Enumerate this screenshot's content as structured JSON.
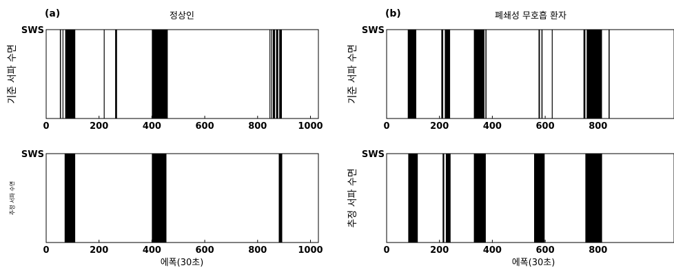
{
  "chart_data": [
    {
      "type": "bar",
      "panel_label": "(a)",
      "title": "정상인",
      "ylabel": "기준 서파 수면",
      "ytick_label": "SWS",
      "xlabel": "",
      "xlim": [
        0,
        1030
      ],
      "xticks": [
        "0",
        "200",
        "400",
        "600",
        "800",
        "1000"
      ],
      "events": [
        [
          52,
          56
        ],
        [
          62,
          63
        ],
        [
          72,
          110
        ],
        [
          218,
          221
        ],
        [
          261,
          268
        ],
        [
          400,
          460
        ],
        [
          845,
          848
        ],
        [
          852,
          855
        ],
        [
          858,
          866
        ],
        [
          870,
          878
        ],
        [
          882,
          892
        ]
      ]
    },
    {
      "type": "bar",
      "panel_label": "(b)",
      "title": "폐쇄성 무호흡 환자",
      "ylabel": "기준 서파 수면",
      "ytick_label": "SWS",
      "xlabel": "",
      "xlim": [
        0,
        930
      ],
      "xticks": [
        "0",
        "200",
        "400",
        "600",
        "800"
      ],
      "events": [
        [
          80,
          112
        ],
        [
          207,
          214
        ],
        [
          220,
          240
        ],
        [
          330,
          370
        ],
        [
          374,
          378
        ],
        [
          575,
          580
        ],
        [
          586,
          590
        ],
        [
          625,
          628
        ],
        [
          745,
          752
        ],
        [
          757,
          815
        ],
        [
          840,
          844
        ]
      ]
    },
    {
      "type": "bar",
      "panel_label": "",
      "title": "",
      "ylabel": "추정 서파 수면",
      "ytick_label": "SWS",
      "xlabel": "에폭(30초)",
      "xlim": [
        0,
        1030
      ],
      "xticks": [
        "0",
        "200",
        "400",
        "600",
        "800",
        "1000"
      ],
      "events": [
        [
          70,
          110
        ],
        [
          400,
          455
        ],
        [
          880,
          893
        ]
      ]
    },
    {
      "type": "bar",
      "panel_label": "",
      "title": "",
      "ylabel": "추정 서파 수면",
      "ytick_label": "SWS",
      "xlabel": "에폭(30초)",
      "xlim": [
        0,
        930
      ],
      "xticks": [
        "0",
        "200",
        "400",
        "600",
        "800"
      ],
      "events": [
        [
          82,
          118
        ],
        [
          212,
          218
        ],
        [
          224,
          242
        ],
        [
          330,
          375
        ],
        [
          558,
          598
        ],
        [
          752,
          815
        ]
      ]
    }
  ]
}
